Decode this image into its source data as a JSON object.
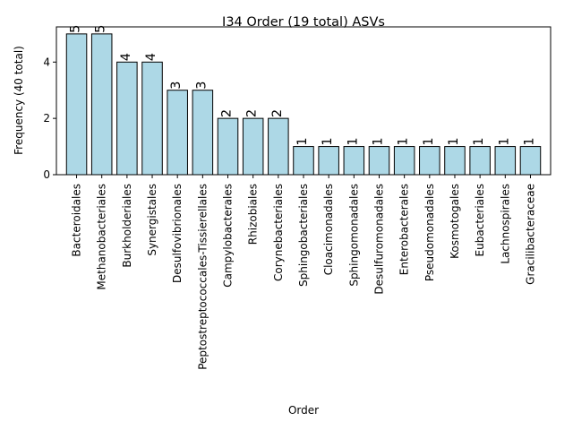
{
  "chart_data": {
    "type": "bar",
    "title": "I34 Order (19 total) ASVs",
    "xlabel": "Order",
    "ylabel": "Frequency (40 total)",
    "ylim": [
      0,
      5.25
    ],
    "yticks": [
      0,
      2,
      4
    ],
    "bar_color": "#add8e6",
    "edge_color": "#000000",
    "grid": false,
    "categories": [
      "Bacteroidales",
      "Methanobacteriales",
      "Burkholderiales",
      "Synergistales",
      "Desulfovibrionales",
      "Peptostreptococcales-Tissierellales",
      "Campylobacterales",
      "Rhizobiales",
      "Corynebacteriales",
      "Sphingobacteriales",
      "Cloacimonadales",
      "Sphingomonadales",
      "Desulfuromonadales",
      "Enterobacterales",
      "Pseudomonadales",
      "Kosmotogales",
      "Eubacteriales",
      "Lachnospirales",
      "Gracilibacteraceae"
    ],
    "values": [
      5,
      5,
      4,
      4,
      3,
      3,
      2,
      2,
      2,
      1,
      1,
      1,
      1,
      1,
      1,
      1,
      1,
      1,
      1
    ]
  }
}
